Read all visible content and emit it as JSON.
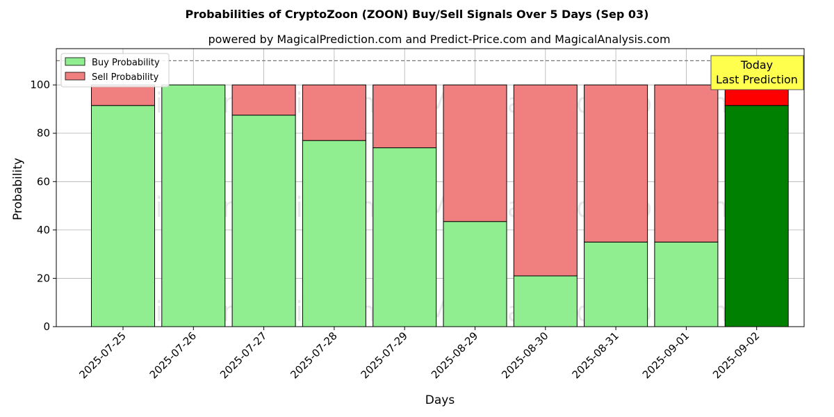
{
  "chart_data": {
    "type": "bar",
    "stacked": true,
    "title": "Probabilities of CryptoZoon (ZOON) Buy/Sell Signals Over 5 Days (Sep 03)",
    "subtitle": "powered by MagicalPrediction.com and Predict-Price.com and MagicalAnalysis.com",
    "xlabel": "Days",
    "ylabel": "Probability",
    "ylim": [
      0,
      115
    ],
    "yticks": [
      0,
      20,
      40,
      60,
      80,
      100
    ],
    "grid": true,
    "legend_position": "top-left",
    "reference_line": 110,
    "categories": [
      "2025-07-25",
      "2025-07-26",
      "2025-07-27",
      "2025-07-28",
      "2025-07-29",
      "2025-08-29",
      "2025-08-30",
      "2025-08-31",
      "2025-09-01",
      "2025-09-02"
    ],
    "series": [
      {
        "name": "Buy Probability",
        "values": [
          91.5,
          100,
          87.5,
          77,
          74,
          43.5,
          21,
          35,
          35,
          91.5
        ],
        "color": "#90ee90",
        "highlight_color": "#008000"
      },
      {
        "name": "Sell Probability",
        "values": [
          8.5,
          0,
          12.5,
          23,
          26,
          56.5,
          79,
          65,
          65,
          8.5
        ],
        "color": "#f08080",
        "highlight_color": "#ff0000"
      }
    ],
    "highlight_index": 9,
    "annotation": {
      "line1": "Today",
      "line2": "Last Prediction",
      "color": "#ffff4d"
    },
    "watermarks": [
      "MagicalAnalysis.com",
      "MagicalPrediction.com"
    ]
  }
}
